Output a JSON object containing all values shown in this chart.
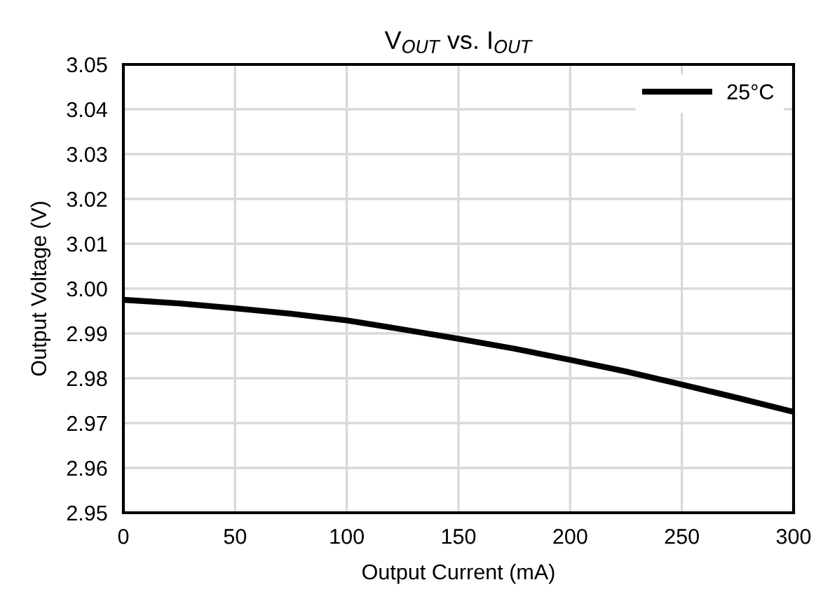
{
  "chart_data": {
    "type": "line",
    "title": "V$_{OUT}$ vs. I$_{OUT}$",
    "xlabel": "Output Current (mA)",
    "ylabel": "Output Voltage (V)",
    "x": [
      0,
      25,
      50,
      75,
      100,
      125,
      150,
      175,
      200,
      225,
      250,
      275,
      300
    ],
    "series": [
      {
        "name": "25°C",
        "color": "#000000",
        "values": [
          2.9975,
          2.9967,
          2.9956,
          2.9944,
          2.9929,
          2.9909,
          2.9888,
          2.9866,
          2.9841,
          2.9815,
          2.9786,
          2.9756,
          2.9725
        ]
      }
    ],
    "xlim": [
      0,
      300
    ],
    "xticks": [
      0,
      50,
      100,
      150,
      200,
      250,
      300
    ],
    "ylim": [
      2.95,
      3.05
    ],
    "yticks": [
      {
        "value": 2.95,
        "label": "2.95"
      },
      {
        "value": 2.96,
        "label": "2.96"
      },
      {
        "value": 2.97,
        "label": "2.97"
      },
      {
        "value": 2.98,
        "label": "2.98"
      },
      {
        "value": 2.99,
        "label": "2.99"
      },
      {
        "value": 3.0,
        "label": "3.00"
      },
      {
        "value": 3.01,
        "label": "3.01"
      },
      {
        "value": 3.02,
        "label": "3.02"
      },
      {
        "value": 3.03,
        "label": "3.03"
      },
      {
        "value": 3.04,
        "label": "3.04"
      },
      {
        "value": 3.05,
        "label": "3.05"
      }
    ],
    "grid": true,
    "legend": "top right",
    "marker": "none",
    "line_style": "solid"
  }
}
